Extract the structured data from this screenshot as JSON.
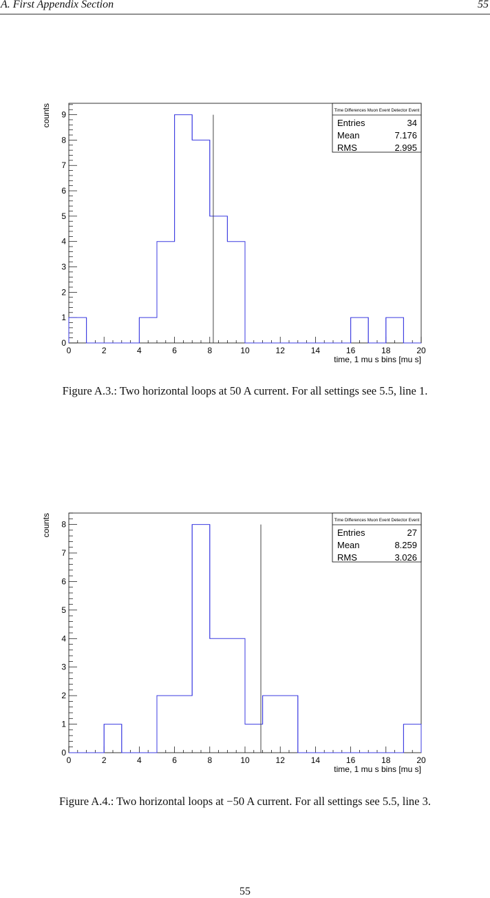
{
  "header": {
    "section": "A.  First Appendix Section",
    "page": "55"
  },
  "figures": [
    {
      "caption": "Figure A.3.: Two horizontal loops at 50 A current. For all settings see 5.5, line 1.",
      "stats": {
        "title": "Time Differences Muon Event Detector Event",
        "rows": [
          {
            "label": "Entries",
            "value": "34"
          },
          {
            "label": "Mean",
            "value": "7.176"
          },
          {
            "label": "RMS",
            "value": "2.995"
          }
        ]
      }
    },
    {
      "caption": "Figure A.4.: Two horizontal loops at −50 A current. For all settings see 5.5, line 3.",
      "stats": {
        "title": "Time Differences Muon Event Detector Event",
        "rows": [
          {
            "label": "Entries",
            "value": "27"
          },
          {
            "label": "Mean",
            "value": "8.259"
          },
          {
            "label": "RMS",
            "value": "3.026"
          }
        ]
      }
    }
  ],
  "chart_data": [
    {
      "type": "bar",
      "xlabel": "time, 1 mu s bins [mu s]",
      "ylabel": "counts",
      "xlim": [
        0,
        20
      ],
      "ylim": [
        0,
        9.45
      ],
      "xticks": [
        "0",
        "2",
        "4",
        "6",
        "8",
        "10",
        "12",
        "14",
        "16",
        "18",
        "20"
      ],
      "yticks": [
        "0",
        "1",
        "2",
        "3",
        "4",
        "5",
        "6",
        "7",
        "8",
        "9"
      ],
      "bin_edges": [
        0,
        1,
        2,
        3,
        4,
        5,
        6,
        7,
        8,
        9,
        10,
        11,
        12,
        13,
        14,
        15,
        16,
        17,
        18,
        19,
        20
      ],
      "values": [
        1,
        0,
        0,
        0,
        1,
        4,
        9,
        8,
        5,
        4,
        0,
        0,
        0,
        0,
        0,
        0,
        1,
        0,
        1,
        0
      ],
      "marker_line_x": 8.2,
      "marker_line_top": 9
    },
    {
      "type": "bar",
      "xlabel": "time, 1 mu s bins [mu s]",
      "ylabel": "counts",
      "xlim": [
        0,
        20
      ],
      "ylim": [
        0,
        8.4
      ],
      "xticks": [
        "0",
        "2",
        "4",
        "6",
        "8",
        "10",
        "12",
        "14",
        "16",
        "18",
        "20"
      ],
      "yticks": [
        "0",
        "1",
        "2",
        "3",
        "4",
        "5",
        "6",
        "7",
        "8"
      ],
      "bin_edges": [
        0,
        1,
        2,
        3,
        4,
        5,
        6,
        7,
        8,
        9,
        10,
        11,
        12,
        13,
        14,
        15,
        16,
        17,
        18,
        19,
        20
      ],
      "values": [
        0,
        0,
        1,
        0,
        0,
        2,
        2,
        8,
        4,
        4,
        1,
        2,
        2,
        0,
        0,
        0,
        0,
        0,
        0,
        1
      ],
      "marker_line_x": 10.9,
      "marker_line_top": 8
    }
  ]
}
